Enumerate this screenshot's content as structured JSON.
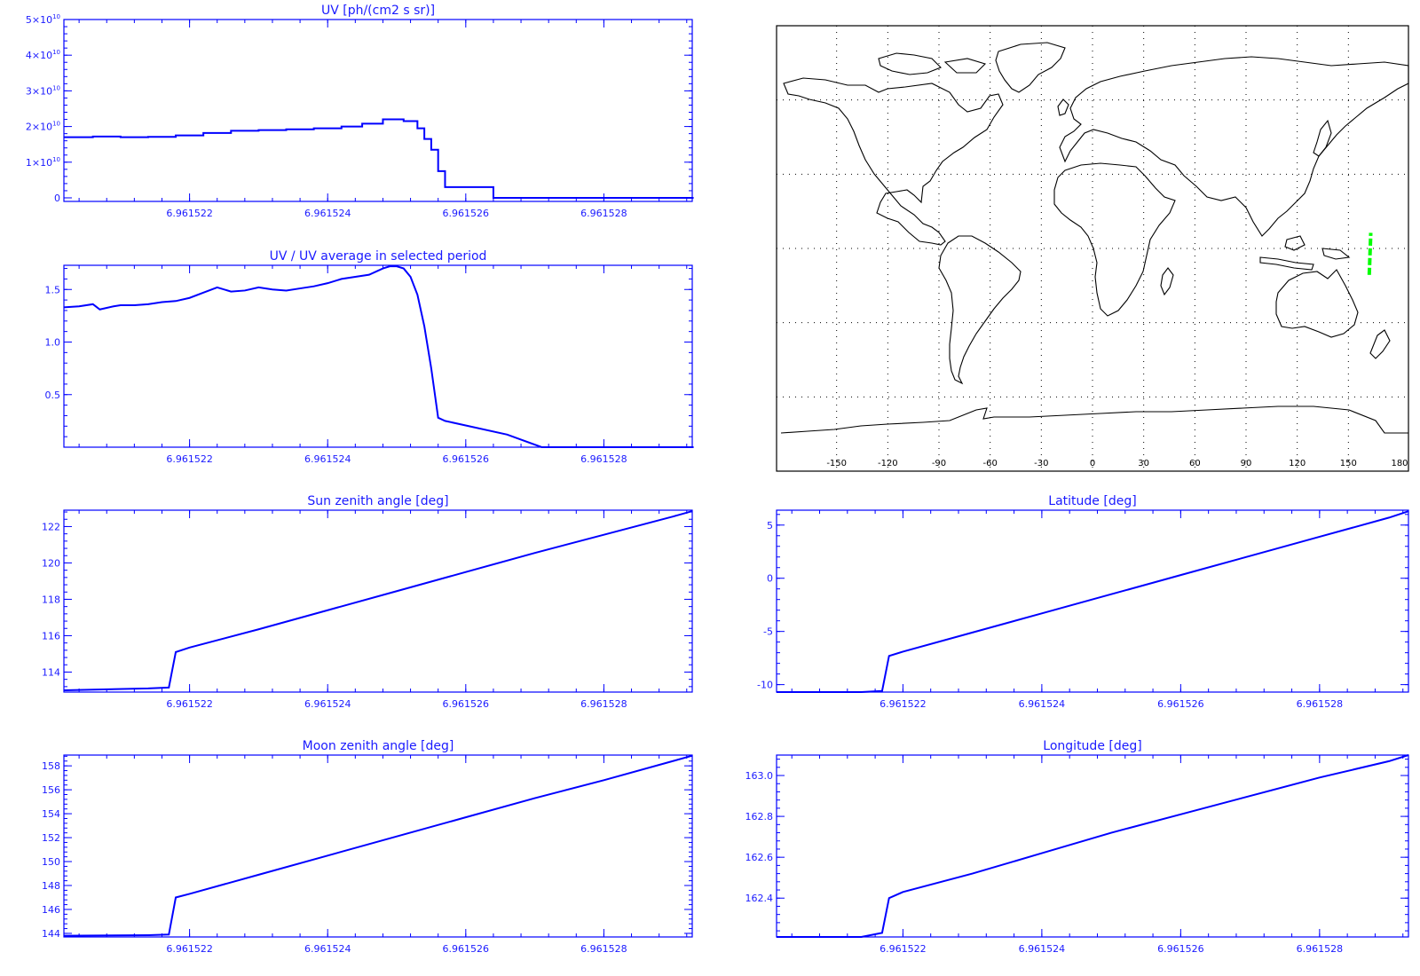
{
  "colors": {
    "axis": "#0000ff",
    "line": "#0000ff",
    "map_track": "#00ff00",
    "map_lines": "#000000"
  },
  "chart_data": [
    {
      "id": "uv",
      "type": "line",
      "step": true,
      "title": "UV [ph/(cm2 s sr)]",
      "xlabel": "",
      "ylabel": "",
      "xlim": [
        6.96152018,
        6.96152928
      ],
      "ylim": [
        -1000000000.0,
        50000000000.0
      ],
      "xticks": [
        6.961522,
        6.961524,
        6.961526,
        6.961528
      ],
      "xtick_labels": [
        "6.961522",
        "6.961524",
        "6.961526",
        "6.961528"
      ],
      "yticks": [
        0,
        10000000000.0,
        20000000000.0,
        30000000000.0,
        40000000000.0,
        50000000000.0
      ],
      "ytick_labels": [
        {
          "base": "0",
          "exp": ""
        },
        {
          "base": "1×10",
          "exp": "10"
        },
        {
          "base": "2×10",
          "exp": "10"
        },
        {
          "base": "3×10",
          "exp": "10"
        },
        {
          "base": "4×10",
          "exp": "10"
        },
        {
          "base": "5×10",
          "exp": "10"
        }
      ],
      "x": [
        6.96152018,
        6.9615206,
        6.961521,
        6.9615214,
        6.9615218,
        6.9615222,
        6.9615226,
        6.961523,
        6.9615234,
        6.9615238,
        6.9615242,
        6.9615245,
        6.9615248,
        6.9615251,
        6.9615253,
        6.9615254,
        6.9615255,
        6.9615256,
        6.9615257,
        6.9615259,
        6.9615264,
        6.961527,
        6.9615293
      ],
      "y": [
        17000000000.0,
        17200000000.0,
        17000000000.0,
        17100000000.0,
        17500000000.0,
        18200000000.0,
        18800000000.0,
        19000000000.0,
        19200000000.0,
        19500000000.0,
        20000000000.0,
        20800000000.0,
        22000000000.0,
        21500000000.0,
        19500000000.0,
        16500000000.0,
        13500000000.0,
        7500000000.0,
        3000000000.0,
        3000000000.0,
        0,
        0,
        0
      ]
    },
    {
      "id": "uvratio",
      "type": "line",
      "title": "UV / UV average in selected period",
      "xlabel": "",
      "ylabel": "",
      "xlim": [
        6.96152018,
        6.96152928
      ],
      "ylim": [
        0,
        1.73
      ],
      "xticks": [
        6.961522,
        6.961524,
        6.961526,
        6.961528
      ],
      "xtick_labels": [
        "6.961522",
        "6.961524",
        "6.961526",
        "6.961528"
      ],
      "yticks": [
        0.5,
        1.0,
        1.5
      ],
      "ytick_labels": [
        "0.5",
        "1.0",
        "1.5"
      ],
      "x": [
        6.96152018,
        6.9615204,
        6.9615206,
        6.9615207,
        6.9615209,
        6.961521,
        6.9615212,
        6.9615214,
        6.9615216,
        6.9615218,
        6.961522,
        6.9615222,
        6.9615224,
        6.9615226,
        6.9615228,
        6.961523,
        6.9615232,
        6.9615234,
        6.9615236,
        6.9615238,
        6.961524,
        6.9615242,
        6.9615244,
        6.9615246,
        6.9615248,
        6.9615249,
        6.961525,
        6.9615251,
        6.9615252,
        6.9615253,
        6.9615254,
        6.9615255,
        6.9615256,
        6.9615257,
        6.9615266,
        6.9615271,
        6.9615293
      ],
      "y": [
        1.33,
        1.34,
        1.36,
        1.31,
        1.34,
        1.35,
        1.35,
        1.36,
        1.38,
        1.39,
        1.42,
        1.47,
        1.52,
        1.48,
        1.49,
        1.52,
        1.5,
        1.49,
        1.51,
        1.53,
        1.56,
        1.6,
        1.62,
        1.64,
        1.7,
        1.72,
        1.72,
        1.7,
        1.62,
        1.45,
        1.15,
        0.75,
        0.28,
        0.25,
        0.12,
        0.0,
        0.0
      ]
    },
    {
      "id": "sun",
      "type": "line",
      "title": "Sun zenith angle [deg]",
      "xlabel": "",
      "ylabel": "",
      "xlim": [
        6.96152018,
        6.96152928
      ],
      "ylim": [
        112.9,
        122.9
      ],
      "xticks": [
        6.961522,
        6.961524,
        6.961526,
        6.961528
      ],
      "xtick_labels": [
        "6.961522",
        "6.961524",
        "6.961526",
        "6.961528"
      ],
      "yticks": [
        114,
        116,
        118,
        120,
        122
      ],
      "ytick_labels": [
        "114",
        "116",
        "118",
        "120",
        "122"
      ],
      "x": [
        6.96152018,
        6.9615214,
        6.9615217,
        6.9615218,
        6.961522,
        6.961523,
        6.961524,
        6.961525,
        6.961526,
        6.961527,
        6.961528,
        6.961529,
        6.96152928
      ],
      "y": [
        113.0,
        113.1,
        113.15,
        115.1,
        115.35,
        116.35,
        117.4,
        118.45,
        119.5,
        120.55,
        121.55,
        122.55,
        122.85
      ]
    },
    {
      "id": "moon",
      "type": "line",
      "title": "Moon zenith angle [deg]",
      "xlabel": "",
      "ylabel": "",
      "xlim": [
        6.96152018,
        6.96152928
      ],
      "ylim": [
        143.7,
        158.9
      ],
      "xticks": [
        6.961522,
        6.961524,
        6.961526,
        6.961528
      ],
      "xtick_labels": [
        "6.961522",
        "6.961524",
        "6.961526",
        "6.961528"
      ],
      "yticks": [
        144,
        146,
        148,
        150,
        152,
        154,
        156,
        158
      ],
      "ytick_labels": [
        "144",
        "146",
        "148",
        "150",
        "152",
        "154",
        "156",
        "158"
      ],
      "x": [
        6.96152018,
        6.9615214,
        6.9615217,
        6.9615218,
        6.961522,
        6.961523,
        6.961524,
        6.961525,
        6.961526,
        6.961527,
        6.961528,
        6.961529,
        6.96152928
      ],
      "y": [
        143.8,
        143.85,
        143.9,
        147.0,
        147.3,
        148.9,
        150.5,
        152.1,
        153.7,
        155.3,
        156.8,
        158.4,
        158.85
      ]
    },
    {
      "id": "lat",
      "type": "line",
      "title": "Latitude [deg]",
      "xlabel": "",
      "ylabel": "",
      "xlim": [
        6.96152018,
        6.96152928
      ],
      "ylim": [
        -10.7,
        6.4
      ],
      "xticks": [
        6.961522,
        6.961524,
        6.961526,
        6.961528
      ],
      "xtick_labels": [
        "6.961522",
        "6.961524",
        "6.961526",
        "6.961528"
      ],
      "yticks": [
        -10,
        -5,
        0,
        5
      ],
      "ytick_labels": [
        "-10",
        "-5",
        "0",
        "5"
      ],
      "x": [
        6.96152018,
        6.9615214,
        6.9615217,
        6.9615218,
        6.961522,
        6.961523,
        6.961524,
        6.961525,
        6.961526,
        6.961527,
        6.961528,
        6.961529,
        6.96152928
      ],
      "y": [
        -10.7,
        -10.7,
        -10.6,
        -7.3,
        -6.9,
        -5.1,
        -3.3,
        -1.5,
        0.3,
        2.1,
        3.9,
        5.7,
        6.3
      ]
    },
    {
      "id": "lon",
      "type": "line",
      "title": "Longitude [deg]",
      "xlabel": "",
      "ylabel": "",
      "xlim": [
        6.96152018,
        6.96152928
      ],
      "ylim": [
        162.21,
        163.1
      ],
      "xticks": [
        6.961522,
        6.961524,
        6.961526,
        6.961528
      ],
      "xtick_labels": [
        "6.961522",
        "6.961524",
        "6.961526",
        "6.961528"
      ],
      "yticks": [
        162.4,
        162.6,
        162.8,
        163.0
      ],
      "ytick_labels": [
        "162.4",
        "162.6",
        "162.8",
        "163.0"
      ],
      "x": [
        6.96152018,
        6.9615214,
        6.9615217,
        6.9615218,
        6.961522,
        6.961523,
        6.961524,
        6.961525,
        6.961526,
        6.961527,
        6.961528,
        6.961529,
        6.96152928
      ],
      "y": [
        162.21,
        162.21,
        162.23,
        162.4,
        162.43,
        162.52,
        162.62,
        162.72,
        162.81,
        162.9,
        162.99,
        163.07,
        163.1
      ]
    }
  ],
  "map": {
    "projection": "cylindrical",
    "lon_range": [
      -180,
      180
    ],
    "lat_range": [
      -90,
      90
    ],
    "grid_lons": [
      -150,
      -120,
      -90,
      -60,
      -30,
      0,
      30,
      60,
      90,
      120,
      150
    ],
    "grid_lats": [
      -60,
      -30,
      0,
      30,
      60
    ],
    "xtick_labels": [
      "-150",
      "-120",
      "-90",
      "-60",
      "-30",
      "0",
      "30",
      "60",
      "90",
      "120",
      "150",
      "180"
    ],
    "xtick_values": [
      -150,
      -120,
      -90,
      -60,
      -30,
      0,
      30,
      60,
      90,
      120,
      150,
      180
    ],
    "track": {
      "lon": [
        162.21,
        162.4,
        162.6,
        162.8,
        163.0,
        163.1
      ],
      "lat": [
        -10.7,
        -7.3,
        -3.3,
        0.3,
        3.9,
        6.3
      ]
    }
  }
}
